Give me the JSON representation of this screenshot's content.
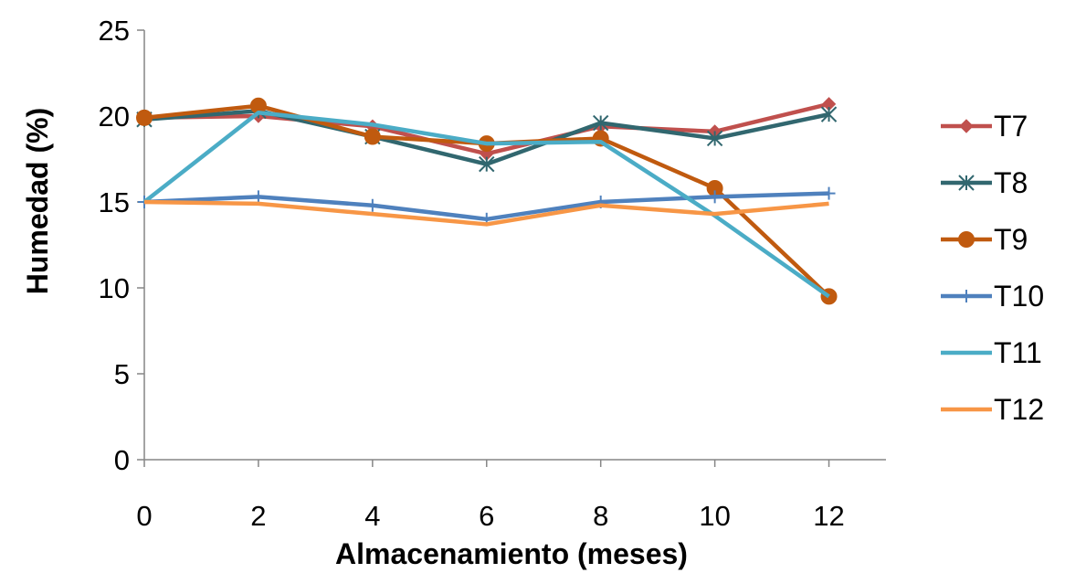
{
  "chart_data": {
    "type": "line",
    "xlabel": "Almacenamiento (meses)",
    "ylabel": "Humedad (%)",
    "x": [
      0,
      2,
      4,
      6,
      8,
      10,
      12
    ],
    "xlim": [
      0,
      13
    ],
    "ylim": [
      0,
      25
    ],
    "xticks": [
      0,
      2,
      4,
      6,
      8,
      10,
      12
    ],
    "yticks": [
      0,
      5,
      10,
      15,
      20,
      25
    ],
    "grid": false,
    "legend_position": "right",
    "series": [
      {
        "name": "T7",
        "marker": "diamond",
        "color": "#c0504d",
        "values": [
          19.9,
          20.0,
          19.4,
          17.8,
          19.4,
          19.1,
          20.7
        ]
      },
      {
        "name": "T8",
        "marker": "asterisk",
        "color": "#31676f",
        "values": [
          19.8,
          20.3,
          18.8,
          17.2,
          19.6,
          18.7,
          20.1
        ]
      },
      {
        "name": "T9",
        "marker": "circle",
        "color": "#c05a0f",
        "values": [
          19.9,
          20.6,
          18.8,
          18.4,
          18.7,
          15.8,
          9.5
        ]
      },
      {
        "name": "T10",
        "marker": "plus",
        "color": "#4f81bd",
        "values": [
          15.0,
          15.3,
          14.8,
          14.0,
          15.0,
          15.3,
          15.5
        ]
      },
      {
        "name": "T11",
        "marker": "none",
        "color": "#4bacc6",
        "values": [
          15.0,
          20.2,
          19.5,
          18.4,
          18.5,
          14.2,
          9.5
        ]
      },
      {
        "name": "T12",
        "marker": "none",
        "color": "#f79646",
        "values": [
          15.0,
          14.9,
          14.3,
          13.7,
          14.8,
          14.3,
          14.9
        ]
      }
    ]
  }
}
